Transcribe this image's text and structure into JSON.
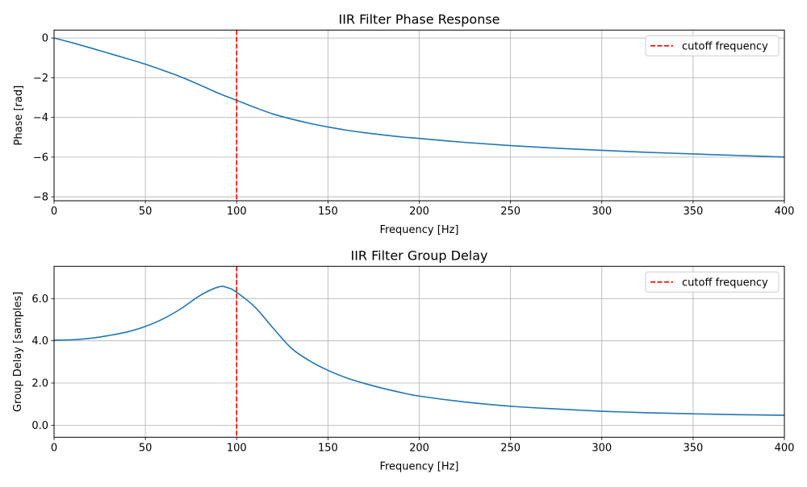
{
  "chart_data": [
    {
      "type": "line",
      "title": "IIR Filter Phase Response",
      "xlabel": "Frequency [Hz]",
      "ylabel": "Phase [rad]",
      "xlim": [
        0,
        400
      ],
      "ylim": [
        -8.2,
        0.4
      ],
      "xticks": [
        0,
        50,
        100,
        150,
        200,
        250,
        300,
        350,
        400
      ],
      "xtick_labels": [
        "0",
        "50",
        "100",
        "150",
        "200",
        "250",
        "300",
        "350",
        "400"
      ],
      "yticks": [
        0,
        -2,
        -4,
        -6,
        -8
      ],
      "ytick_labels": [
        "0",
        "−2",
        "−4",
        "−6",
        "−8"
      ],
      "grid": true,
      "legend_placement": "upper-right",
      "series": [
        {
          "color": "#1f77b4",
          "x": [
            0,
            10,
            20,
            30,
            40,
            50,
            60,
            70,
            80,
            90,
            100,
            110,
            120,
            130,
            140,
            150,
            160,
            170,
            180,
            190,
            200,
            225,
            250,
            275,
            300,
            325,
            350,
            375,
            400
          ],
          "y": [
            0,
            -0.24,
            -0.5,
            -0.77,
            -1.04,
            -1.32,
            -1.64,
            -1.98,
            -2.37,
            -2.78,
            -3.14,
            -3.5,
            -3.83,
            -4.08,
            -4.3,
            -4.48,
            -4.64,
            -4.77,
            -4.88,
            -4.98,
            -5.06,
            -5.26,
            -5.42,
            -5.55,
            -5.66,
            -5.76,
            -5.84,
            -5.92,
            -6.0
          ]
        }
      ],
      "vline": {
        "x": 100,
        "name": "cutoff frequency",
        "color": "#ff0000",
        "style": "dashed"
      }
    },
    {
      "type": "line",
      "title": "IIR Filter Group Delay",
      "xlabel": "Frequency [Hz]",
      "ylabel": "Group Delay [samples]",
      "xlim": [
        0,
        400
      ],
      "ylim": [
        -0.57,
        7.53
      ],
      "xticks": [
        0,
        50,
        100,
        150,
        200,
        250,
        300,
        350,
        400
      ],
      "xtick_labels": [
        "0",
        "50",
        "100",
        "150",
        "200",
        "250",
        "300",
        "350",
        "400"
      ],
      "yticks": [
        0,
        2,
        4,
        6
      ],
      "ytick_labels": [
        "0.0",
        "2.0",
        "4.0",
        "6.0"
      ],
      "grid": true,
      "legend_placement": "upper-right",
      "series": [
        {
          "color": "#1f77b4",
          "x": [
            0,
            10,
            20,
            30,
            40,
            50,
            60,
            70,
            80,
            90,
            95,
            100,
            110,
            120,
            130,
            140,
            150,
            160,
            170,
            180,
            190,
            200,
            225,
            250,
            275,
            300,
            325,
            350,
            375,
            400
          ],
          "y": [
            4.03,
            4.05,
            4.12,
            4.25,
            4.42,
            4.68,
            5.05,
            5.55,
            6.15,
            6.55,
            6.52,
            6.3,
            5.6,
            4.6,
            3.65,
            3.05,
            2.6,
            2.25,
            1.98,
            1.75,
            1.55,
            1.38,
            1.1,
            0.9,
            0.77,
            0.66,
            0.59,
            0.54,
            0.5,
            0.47
          ]
        }
      ],
      "vline": {
        "x": 100,
        "name": "cutoff frequency",
        "color": "#ff0000",
        "style": "dashed"
      }
    }
  ]
}
